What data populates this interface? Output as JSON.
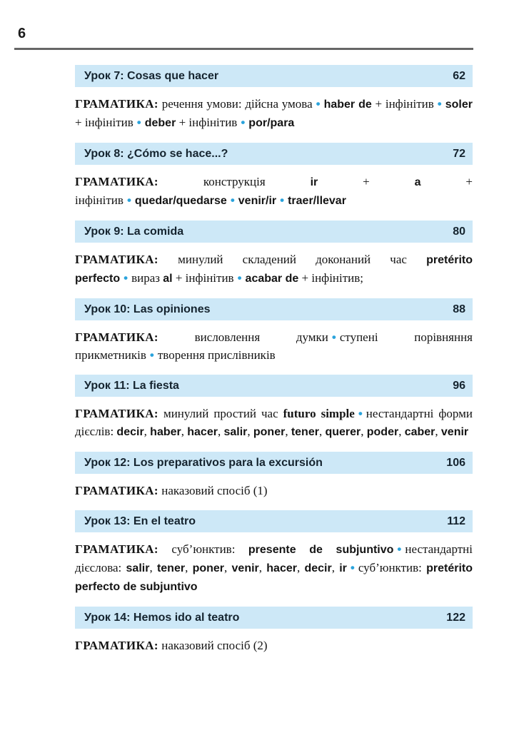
{
  "page": {
    "number": "6",
    "colors": {
      "bar_bg": "#cde8f7",
      "bullet": "#2aa3dc",
      "rule": "#666666",
      "bar_text": "#15242f",
      "body_text": "#141414"
    }
  },
  "sections": [
    {
      "title": "Урок 7: Cosas que hacer",
      "page": "62",
      "grammar": [
        {
          "t": "label",
          "x": "ГРАМАТИКА:"
        },
        {
          "t": "plain",
          "x": " речення умови: дійсна умова"
        },
        {
          "t": "bullet"
        },
        {
          "t": "term",
          "x": "haber de"
        },
        {
          "t": "plain",
          "x": " + інфінітив"
        },
        {
          "t": "bullet"
        },
        {
          "t": "term",
          "x": "soler"
        },
        {
          "t": "plain",
          "x": " + інфінітив"
        },
        {
          "t": "bullet"
        },
        {
          "t": "term",
          "x": "deber"
        },
        {
          "t": "plain",
          "x": " + інфінітив"
        },
        {
          "t": "bullet"
        },
        {
          "t": "term",
          "x": "por/para"
        }
      ]
    },
    {
      "title": "Урок 8: ¿Cómo se hace...?",
      "page": "72",
      "grammar": [
        {
          "t": "label",
          "x": "ГРАМАТИКА:"
        },
        {
          "t": "plain",
          "x": " конструкція "
        },
        {
          "t": "term",
          "x": "ir"
        },
        {
          "t": "plain",
          "x": " + "
        },
        {
          "t": "term",
          "x": "a"
        },
        {
          "t": "plain",
          "x": " + інфінітив"
        },
        {
          "t": "bullet"
        },
        {
          "t": "term",
          "x": "quedar/quedarse"
        },
        {
          "t": "bullet"
        },
        {
          "t": "term",
          "x": "venir/ir"
        },
        {
          "t": "bullet"
        },
        {
          "t": "term",
          "x": "traer/llevar"
        }
      ]
    },
    {
      "title": "Урок 9: La comida",
      "page": "80",
      "grammar": [
        {
          "t": "label",
          "x": "ГРАМАТИКА:"
        },
        {
          "t": "plain",
          "x": " минулий складений доконаний час "
        },
        {
          "t": "term",
          "x": "pretérito perfecto"
        },
        {
          "t": "bullet"
        },
        {
          "t": "plain",
          "x": "вираз "
        },
        {
          "t": "term",
          "x": "al"
        },
        {
          "t": "plain",
          "x": " + інфінітив"
        },
        {
          "t": "bullet"
        },
        {
          "t": "term",
          "x": "acabar de"
        },
        {
          "t": "plain",
          "x": " + інфінітив;"
        }
      ]
    },
    {
      "title": "Урок 10: Las opiniones",
      "page": "88",
      "grammar": [
        {
          "t": "label",
          "x": "ГРАМАТИКА:"
        },
        {
          "t": "plain",
          "x": " висловлення думки"
        },
        {
          "t": "bullet"
        },
        {
          "t": "plain",
          "x": "ступені порівняння прикметників"
        },
        {
          "t": "bullet"
        },
        {
          "t": "plain",
          "x": "творення прислівників"
        }
      ]
    },
    {
      "title": "Урок 11: La fiesta",
      "page": "96",
      "grammar": [
        {
          "t": "label",
          "x": "ГРАМАТИКА:"
        },
        {
          "t": "plain",
          "x": " минулий простий час "
        },
        {
          "t": "sterm",
          "x": "futuro simple"
        },
        {
          "t": "bullet"
        },
        {
          "t": "plain",
          "x": "нестандартні форми дієслів: "
        },
        {
          "t": "term",
          "x": "decir"
        },
        {
          "t": "plain",
          "x": ", "
        },
        {
          "t": "term",
          "x": "haber"
        },
        {
          "t": "plain",
          "x": ", "
        },
        {
          "t": "term",
          "x": "hacer"
        },
        {
          "t": "plain",
          "x": ", "
        },
        {
          "t": "term",
          "x": "salir"
        },
        {
          "t": "plain",
          "x": ", "
        },
        {
          "t": "term",
          "x": "poner"
        },
        {
          "t": "plain",
          "x": ", "
        },
        {
          "t": "term",
          "x": "tener"
        },
        {
          "t": "plain",
          "x": ", "
        },
        {
          "t": "term",
          "x": "querer"
        },
        {
          "t": "plain",
          "x": ", "
        },
        {
          "t": "term",
          "x": "poder"
        },
        {
          "t": "plain",
          "x": ", "
        },
        {
          "t": "term",
          "x": "caber"
        },
        {
          "t": "plain",
          "x": ", "
        },
        {
          "t": "term",
          "x": "venir"
        }
      ]
    },
    {
      "title": "Урок 12: Los preparativos para la excursión",
      "page": "106",
      "grammar": [
        {
          "t": "label",
          "x": "ГРАМАТИКА:"
        },
        {
          "t": "plain",
          "x": " наказовий спосіб (1)"
        }
      ]
    },
    {
      "title": "Урок 13: En el teatro",
      "page": "112",
      "grammar": [
        {
          "t": "label",
          "x": "ГРАМАТИКА:"
        },
        {
          "t": "plain",
          "x": " суб’юнктив: "
        },
        {
          "t": "term",
          "x": "presente de subjuntivo"
        },
        {
          "t": "bullet"
        },
        {
          "t": "plain",
          "x": "нестандартні дієслова: "
        },
        {
          "t": "term",
          "x": "salir"
        },
        {
          "t": "plain",
          "x": ", "
        },
        {
          "t": "term",
          "x": "tener"
        },
        {
          "t": "plain",
          "x": ", "
        },
        {
          "t": "term",
          "x": "poner"
        },
        {
          "t": "plain",
          "x": ", "
        },
        {
          "t": "term",
          "x": "venir"
        },
        {
          "t": "plain",
          "x": ", "
        },
        {
          "t": "term",
          "x": "hacer"
        },
        {
          "t": "plain",
          "x": ", "
        },
        {
          "t": "term",
          "x": "decir"
        },
        {
          "t": "plain",
          "x": ", "
        },
        {
          "t": "term",
          "x": "ir"
        },
        {
          "t": "bullet"
        },
        {
          "t": "plain",
          "x": "суб’юнктив: "
        },
        {
          "t": "term",
          "x": "pretérito perfecto de subjuntivo"
        }
      ]
    },
    {
      "title": "Урок 14: Hemos ido al teatro",
      "page": "122",
      "grammar": [
        {
          "t": "label",
          "x": "ГРАМАТИКА:"
        },
        {
          "t": "plain",
          "x": " наказовий спосіб (2)"
        }
      ]
    }
  ]
}
